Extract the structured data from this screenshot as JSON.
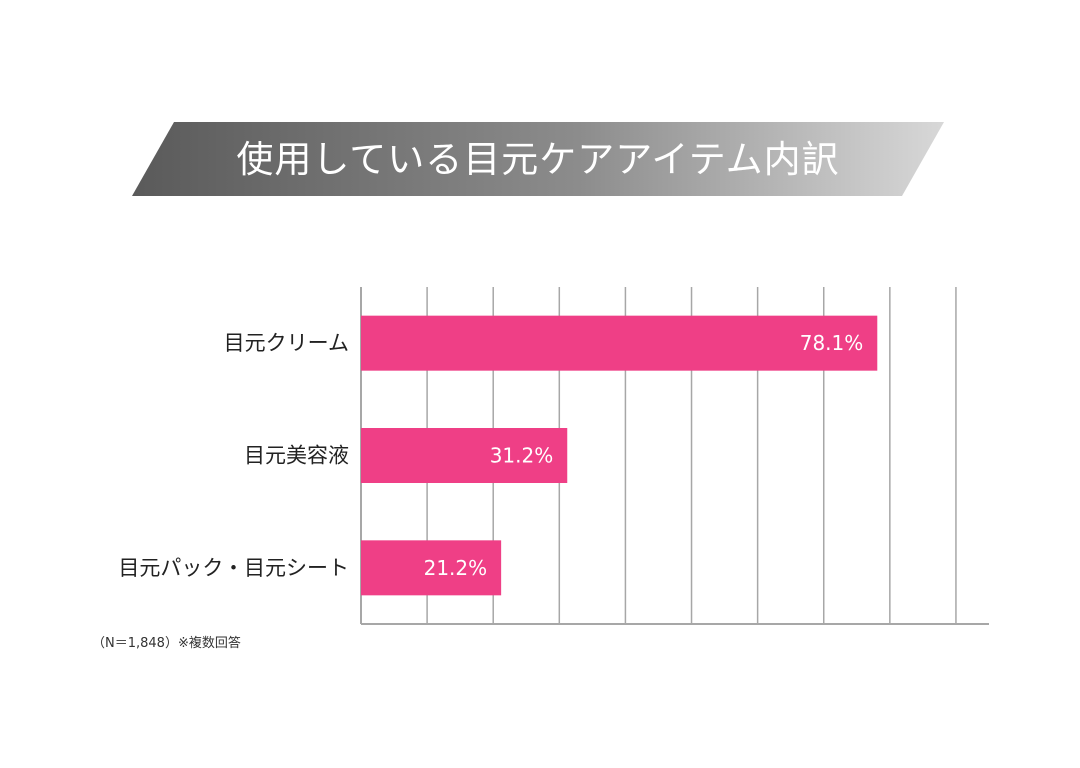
{
  "chart_data": {
    "type": "bar",
    "orientation": "horizontal",
    "title": "使用している目元ケアアイテム内訳",
    "categories": [
      "目元クリーム",
      "目元美容液",
      "目元パック・目元シート"
    ],
    "values": [
      78.1,
      31.2,
      21.2
    ],
    "value_labels": [
      "78.1%",
      "31.2%",
      "21.2%"
    ],
    "xlim": [
      0,
      95
    ],
    "grid": true,
    "gridline_step": 10,
    "legend": "none",
    "bar_color": "#ef3f86"
  },
  "footnote": "（N＝1,848）※複数回答",
  "colors": {
    "banner_dark": "#5a5a5a",
    "banner_light": "#d8d8d8",
    "grid": "#a7a7a7",
    "bar": "#ef3f86"
  }
}
